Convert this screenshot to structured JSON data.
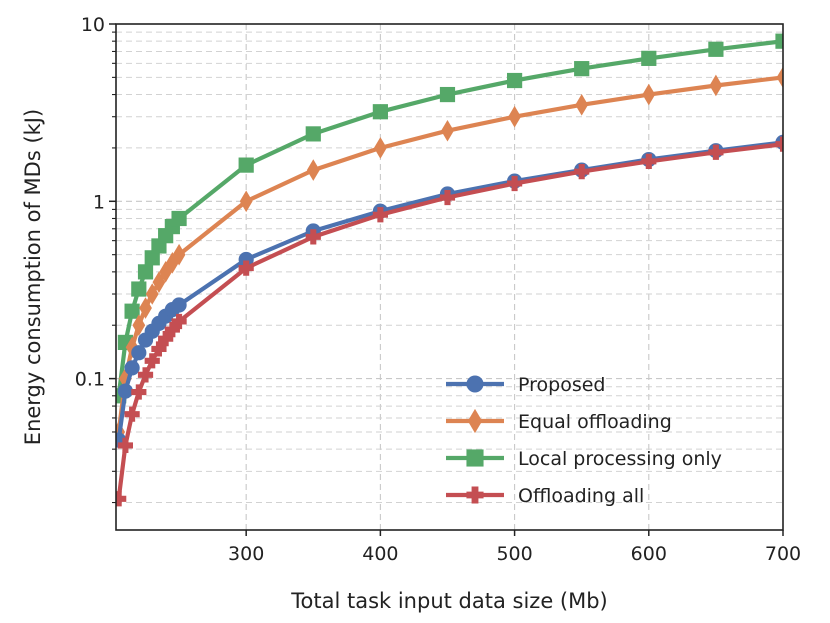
{
  "chart_data": {
    "type": "line",
    "title": "",
    "xlabel": "Total task input data size (Mb)",
    "ylabel": "Energy consumption of MDs (kJ)",
    "xlim": [
      203,
      700
    ],
    "ylim": [
      0.014,
      10
    ],
    "yscale": "log",
    "grid": true,
    "legend_position": "lower-right",
    "x_ticks": [
      300,
      400,
      500,
      600,
      700
    ],
    "x_tick_labels": [
      "300",
      "400",
      "500",
      "600",
      "700"
    ],
    "y_ticks": [
      0.1,
      1,
      10
    ],
    "y_tick_labels": [
      "0.1",
      "1",
      "10"
    ],
    "x": [
      205,
      210,
      215,
      220,
      225,
      230,
      235,
      240,
      245,
      250,
      300,
      350,
      400,
      450,
      500,
      550,
      600,
      650,
      700
    ],
    "series": [
      {
        "name": "Proposed",
        "color": "#4c72b0",
        "marker": "circle",
        "values": [
          0.045,
          0.085,
          0.115,
          0.14,
          0.165,
          0.185,
          0.205,
          0.225,
          0.245,
          0.26,
          0.47,
          0.68,
          0.88,
          1.1,
          1.3,
          1.5,
          1.72,
          1.93,
          2.15
        ]
      },
      {
        "name": "Equal offloading",
        "color": "#dd8452",
        "marker": "diamond",
        "values": [
          0.05,
          0.1,
          0.15,
          0.2,
          0.25,
          0.3,
          0.35,
          0.4,
          0.45,
          0.5,
          1.0,
          1.5,
          2.0,
          2.5,
          3.0,
          3.5,
          4.0,
          4.5,
          5.0
        ]
      },
      {
        "name": "Local processing only",
        "color": "#55a868",
        "marker": "square",
        "values": [
          0.08,
          0.16,
          0.24,
          0.32,
          0.4,
          0.48,
          0.56,
          0.64,
          0.72,
          0.8,
          1.6,
          2.4,
          3.2,
          4.0,
          4.8,
          5.6,
          6.4,
          7.2,
          8.0
        ]
      },
      {
        "name": "Offloading all",
        "color": "#c44e52",
        "marker": "plus",
        "values": [
          0.021,
          0.042,
          0.063,
          0.084,
          0.105,
          0.126,
          0.147,
          0.168,
          0.189,
          0.21,
          0.42,
          0.63,
          0.84,
          1.05,
          1.26,
          1.47,
          1.68,
          1.89,
          2.1
        ]
      }
    ]
  }
}
